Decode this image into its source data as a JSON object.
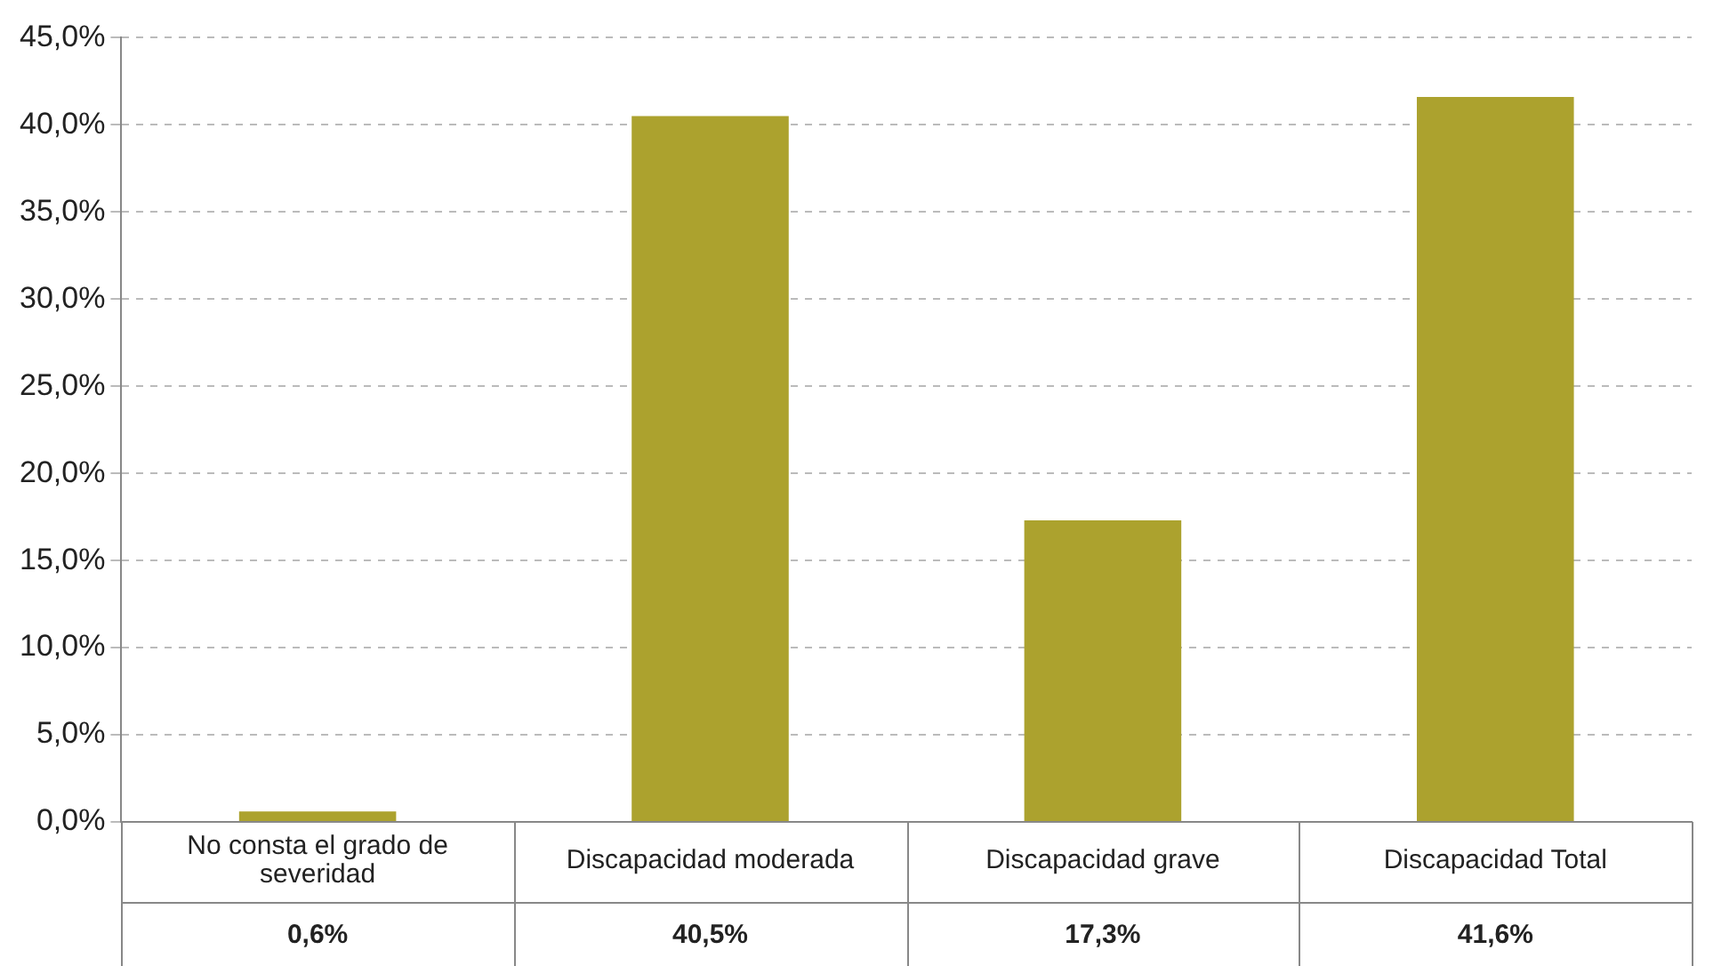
{
  "chart_data": {
    "type": "bar",
    "categories": [
      "No consta el grado de severidad",
      "Discapacidad moderada",
      "Discapacidad grave",
      "Discapacidad Total"
    ],
    "values": [
      0.6,
      40.5,
      17.3,
      41.6
    ],
    "value_labels": [
      "0,6%",
      "40,5%",
      "17,3%",
      "41,6%"
    ],
    "color": "#aca22e",
    "ylim": [
      0,
      45
    ],
    "yticks": [
      {
        "value": 0,
        "label": "0,0%"
      },
      {
        "value": 5,
        "label": "5,0%"
      },
      {
        "value": 10,
        "label": "10,0%"
      },
      {
        "value": 15,
        "label": "15,0%"
      },
      {
        "value": 20,
        "label": "20,0%"
      },
      {
        "value": 25,
        "label": "25,0%"
      },
      {
        "value": 30,
        "label": "30,0%"
      },
      {
        "value": 35,
        "label": "35,0%"
      },
      {
        "value": 40,
        "label": "40,0%"
      },
      {
        "value": 45,
        "label": "45,0%"
      }
    ],
    "grid": "y"
  }
}
